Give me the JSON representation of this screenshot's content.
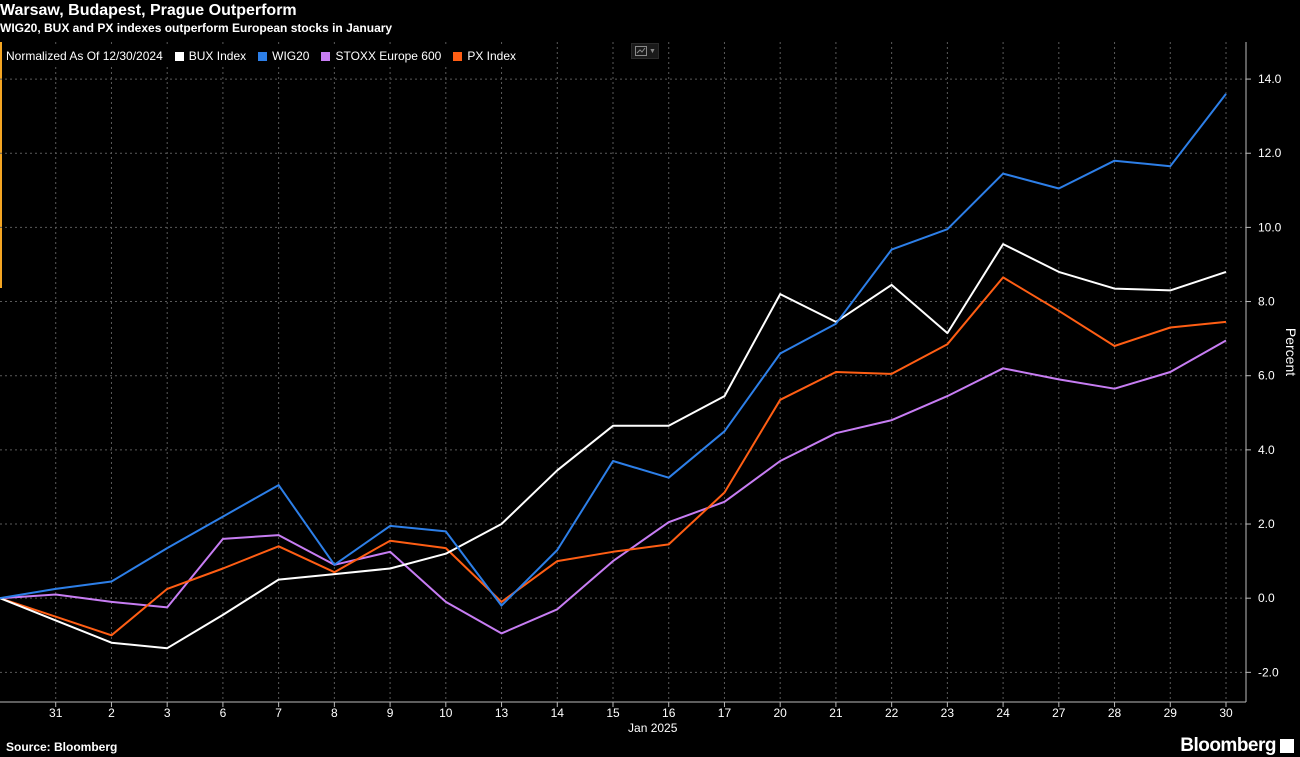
{
  "header": {
    "title": "Warsaw, Budapest, Prague Outperform",
    "subtitle": "WIG20, BUX and PX indexes outperform European stocks in January"
  },
  "legend": {
    "prefix": "Normalized As Of 12/30/2024"
  },
  "footer": {
    "source": "Source: Bloomberg",
    "brand": "Bloomberg"
  },
  "chart_data": {
    "type": "line",
    "title": "Warsaw, Budapest, Prague Outperform",
    "subtitle": "WIG20, BUX and PX indexes outperform European stocks in January",
    "ylabel": "Percent",
    "xlabel": "",
    "x_group_label": "Jan 2025",
    "ylim": [
      -2.8,
      15.0
    ],
    "yticks": [
      -2.0,
      0.0,
      2.0,
      4.0,
      6.0,
      8.0,
      10.0,
      12.0,
      14.0
    ],
    "grid": true,
    "legend_position": "top-left",
    "categories": [
      "30",
      "31",
      "2",
      "3",
      "6",
      "7",
      "8",
      "9",
      "10",
      "13",
      "14",
      "15",
      "16",
      "17",
      "20",
      "21",
      "22",
      "23",
      "24",
      "27",
      "28",
      "29",
      "30"
    ],
    "tick_labels_shown": [
      "31",
      "2",
      "3",
      "6",
      "7",
      "8",
      "9",
      "10",
      "13",
      "14",
      "15",
      "16",
      "17",
      "20",
      "21",
      "22",
      "23",
      "24",
      "27",
      "28",
      "29",
      "30"
    ],
    "series": [
      {
        "name": "BUX Index",
        "color": "#ffffff",
        "values": [
          0.0,
          -0.6,
          -1.2,
          -1.35,
          -0.45,
          0.5,
          0.65,
          0.8,
          1.2,
          2.0,
          3.45,
          4.65,
          4.65,
          5.45,
          8.2,
          7.45,
          8.45,
          7.15,
          9.55,
          8.8,
          8.35,
          8.3,
          8.8
        ]
      },
      {
        "name": "WIG20",
        "color": "#2d7fe8",
        "values": [
          0.0,
          0.25,
          0.45,
          1.35,
          2.2,
          3.05,
          0.9,
          1.95,
          1.8,
          -0.2,
          1.3,
          3.7,
          3.25,
          4.5,
          6.6,
          7.4,
          9.4,
          9.95,
          11.45,
          11.05,
          11.8,
          11.65,
          13.6
        ]
      },
      {
        "name": "STOXX Europe 600",
        "color": "#c77df3",
        "values": [
          0.0,
          0.1,
          -0.1,
          -0.25,
          1.6,
          1.7,
          0.9,
          1.25,
          -0.1,
          -0.95,
          -0.3,
          1.0,
          2.05,
          2.6,
          3.7,
          4.45,
          4.8,
          5.45,
          6.2,
          5.9,
          5.65,
          6.1,
          6.95
        ]
      },
      {
        "name": "PX Index",
        "color": "#ff5e14",
        "values": [
          0.0,
          -0.5,
          -1.0,
          0.25,
          0.8,
          1.4,
          0.7,
          1.55,
          1.35,
          -0.1,
          1.0,
          1.25,
          1.45,
          2.85,
          5.35,
          6.1,
          6.05,
          6.85,
          8.65,
          7.75,
          6.8,
          7.3,
          7.45
        ]
      }
    ]
  }
}
